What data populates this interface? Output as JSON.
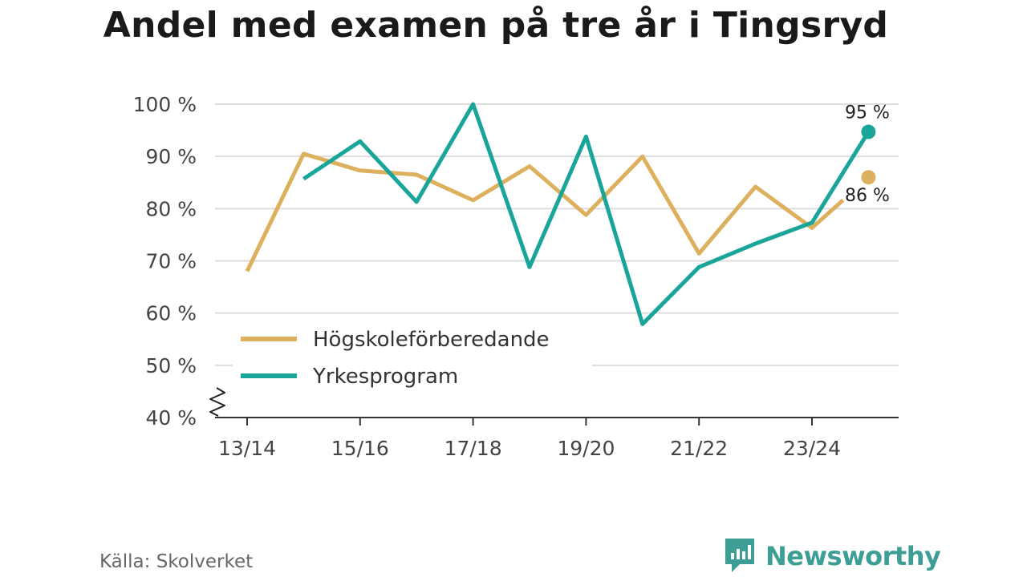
{
  "title": "Andel med examen på tre år i Tingsryd",
  "source": "Källa: Skolverket",
  "brand": {
    "name": "Newsworthy",
    "icon": "newsworthy-logo-icon"
  },
  "colors": {
    "hogskole": "#ddb05e",
    "yrkes": "#1aa59a",
    "grid": "#dddddd",
    "axis": "#333333"
  },
  "chart_data": {
    "type": "line",
    "title": "Andel med examen på tre år i Tingsryd",
    "x": [
      "13/14",
      "14/15",
      "15/16",
      "16/17",
      "17/18",
      "18/19",
      "19/20",
      "20/21",
      "21/22",
      "22/23",
      "23/24",
      "24/25"
    ],
    "x_tick_labels": [
      "13/14",
      "15/16",
      "17/18",
      "19/20",
      "21/22",
      "23/24"
    ],
    "y_ticks": [
      40,
      50,
      60,
      70,
      80,
      90,
      100
    ],
    "y_tick_labels": [
      "40 %",
      "50 %",
      "60 %",
      "70 %",
      "80 %",
      "90 %",
      "100 %"
    ],
    "ylim": [
      40,
      100
    ],
    "y_axis_break": true,
    "grid": true,
    "legend_position": "bottom-left",
    "series": [
      {
        "name": "Högskoleförberedande",
        "color": "#ddb05e",
        "values": [
          68,
          90.5,
          87.3,
          86.5,
          81.6,
          88.1,
          78.8,
          90,
          71.4,
          84.2,
          76.3,
          86
        ],
        "end_label": "86 %"
      },
      {
        "name": "Yrkesprogram",
        "color": "#1aa59a",
        "values": [
          null,
          85.7,
          92.9,
          81.3,
          100,
          68.8,
          93.8,
          57.9,
          68.8,
          73.3,
          77.3,
          94.7
        ],
        "end_label": "95 %"
      }
    ]
  }
}
